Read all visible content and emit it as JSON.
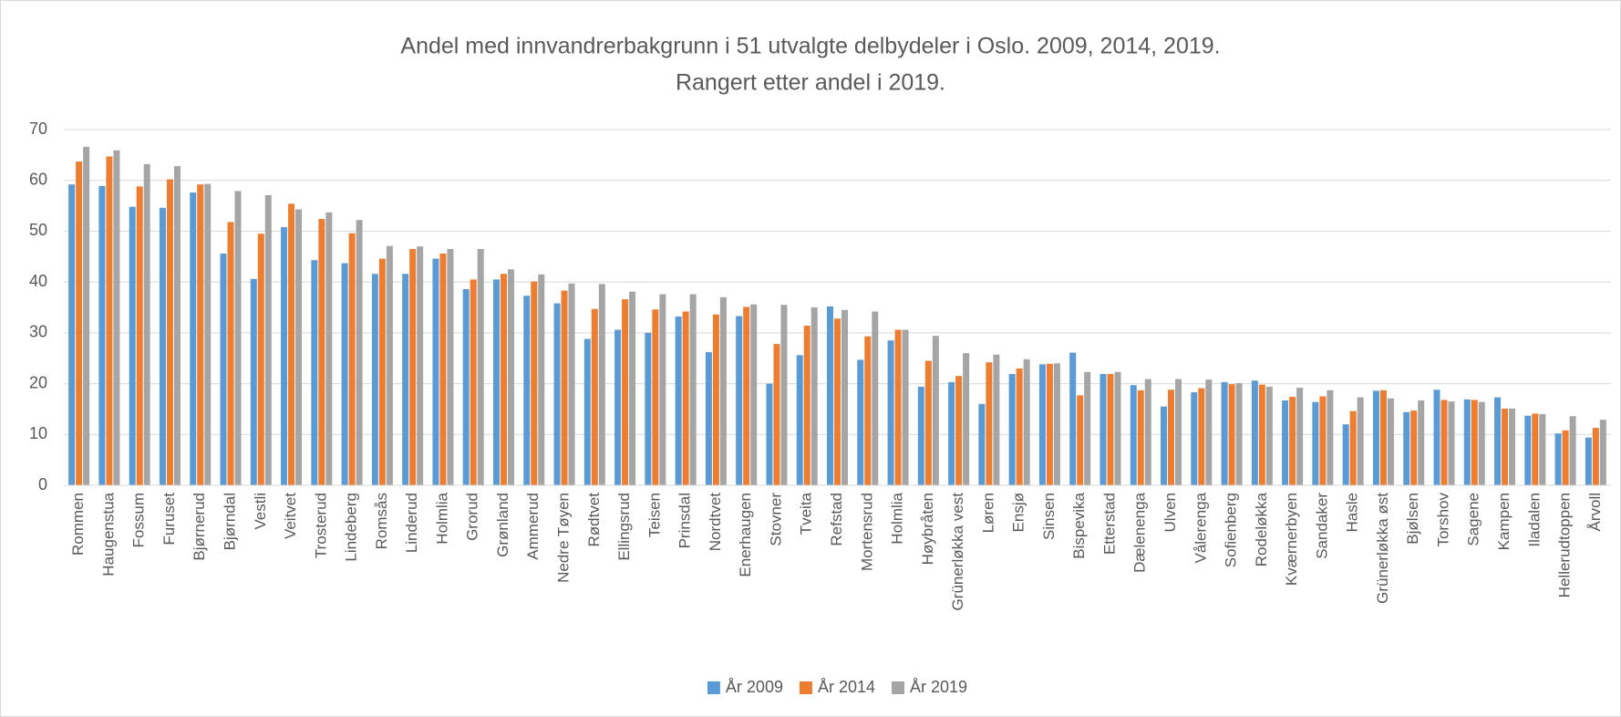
{
  "chart_data": {
    "type": "bar",
    "title": "Andel med innvandrerbakgrunn i 51 utvalgte delbydeler i Oslo. 2009, 2014, 2019.",
    "subtitle": "Rangert etter andel i 2019.",
    "categories": [
      "Rommen",
      "Haugenstua",
      "Fossum",
      "Furuset",
      "Bjørnerud",
      "Bjørndal",
      "Vestli",
      "Veitvet",
      "Trosterud",
      "Lindeberg",
      "Romsås",
      "Linderud",
      "Holmlia",
      "Grorud",
      "Grønland",
      "Ammerud",
      "Nedre Tøyen",
      "Rødtvet",
      "Ellingsrud",
      "Teisen",
      "Prinsdal",
      "Nordtvet",
      "Enerhaugen",
      "Stovner",
      "Tveita",
      "Refstad",
      "Mortensrud",
      "Holmlia",
      "Høybråten",
      "Grünerløkka vest",
      "Løren",
      "Ensjø",
      "Sinsen",
      "Bispevika",
      "Etterstad",
      "Dælenenga",
      "Ulven",
      "Vålerenga",
      "Sofienberg",
      "Rodeløkka",
      "Kværnerbyen",
      "Sandaker",
      "Hasle",
      "Grünerløkka øst",
      "Bjølsen",
      "Torshov",
      "Sagene",
      "Kampen",
      "Iladalen",
      "Hellerudtoppen",
      "Årvoll"
    ],
    "series": [
      {
        "name": "År 2009",
        "color": "#5b9bd5",
        "values": [
          59.2,
          58.9,
          54.8,
          54.6,
          57.6,
          45.6,
          40.6,
          50.8,
          44.3,
          43.7,
          41.6,
          41.6,
          44.6,
          38.6,
          40.5,
          37.3,
          35.8,
          28.8,
          30.6,
          30,
          33.2,
          26.2,
          33.3,
          20,
          25.6,
          35.2,
          24.7,
          28.5,
          19.4,
          20.3,
          16,
          21.9,
          23.8,
          26.1,
          21.9,
          19.7,
          15.5,
          18.3,
          20.3,
          20.6,
          16.7,
          16.4,
          12,
          18.6,
          14.4,
          18.8,
          16.9,
          17.3,
          13.7,
          10.2,
          9.4
        ]
      },
      {
        "name": "År 2014",
        "color": "#ed7d31",
        "values": [
          63.7,
          64.7,
          58.8,
          60.2,
          59.2,
          51.8,
          49.5,
          55.4,
          52.4,
          49.6,
          44.6,
          46.5,
          45.6,
          40.5,
          41.6,
          40.1,
          38.3,
          34.7,
          36.6,
          34.6,
          34.2,
          33.6,
          35.1,
          27.8,
          31.4,
          32.8,
          29.3,
          30.6,
          24.5,
          21.5,
          24.2,
          23,
          23.9,
          17.7,
          21.9,
          18.7,
          18.8,
          19.1,
          19.9,
          19.8,
          17.4,
          17.5,
          14.6,
          18.7,
          14.7,
          16.8,
          16.8,
          15.1,
          14.1,
          10.8,
          11.3
        ]
      },
      {
        "name": "År 2019",
        "color": "#a5a5a5",
        "values": [
          66.6,
          65.9,
          63.2,
          62.8,
          59.3,
          57.9,
          57.1,
          54.3,
          53.7,
          52.2,
          47.1,
          47,
          46.5,
          46.5,
          42.5,
          41.5,
          39.7,
          39.6,
          38.1,
          37.6,
          37.6,
          37,
          35.6,
          35.5,
          35,
          34.5,
          34.2,
          30.6,
          29.4,
          26,
          25.7,
          24.8,
          24,
          22.3,
          22.3,
          20.9,
          20.9,
          20.8,
          20.1,
          19.4,
          19.2,
          18.7,
          17.3,
          17.1,
          16.7,
          16.5,
          16.4,
          15.1,
          14,
          13.6,
          12.9
        ]
      }
    ],
    "ylim": [
      0,
      70
    ],
    "yticks": [
      0,
      10,
      20,
      30,
      40,
      50,
      60,
      70
    ],
    "grid": true,
    "legend": "bottom"
  }
}
